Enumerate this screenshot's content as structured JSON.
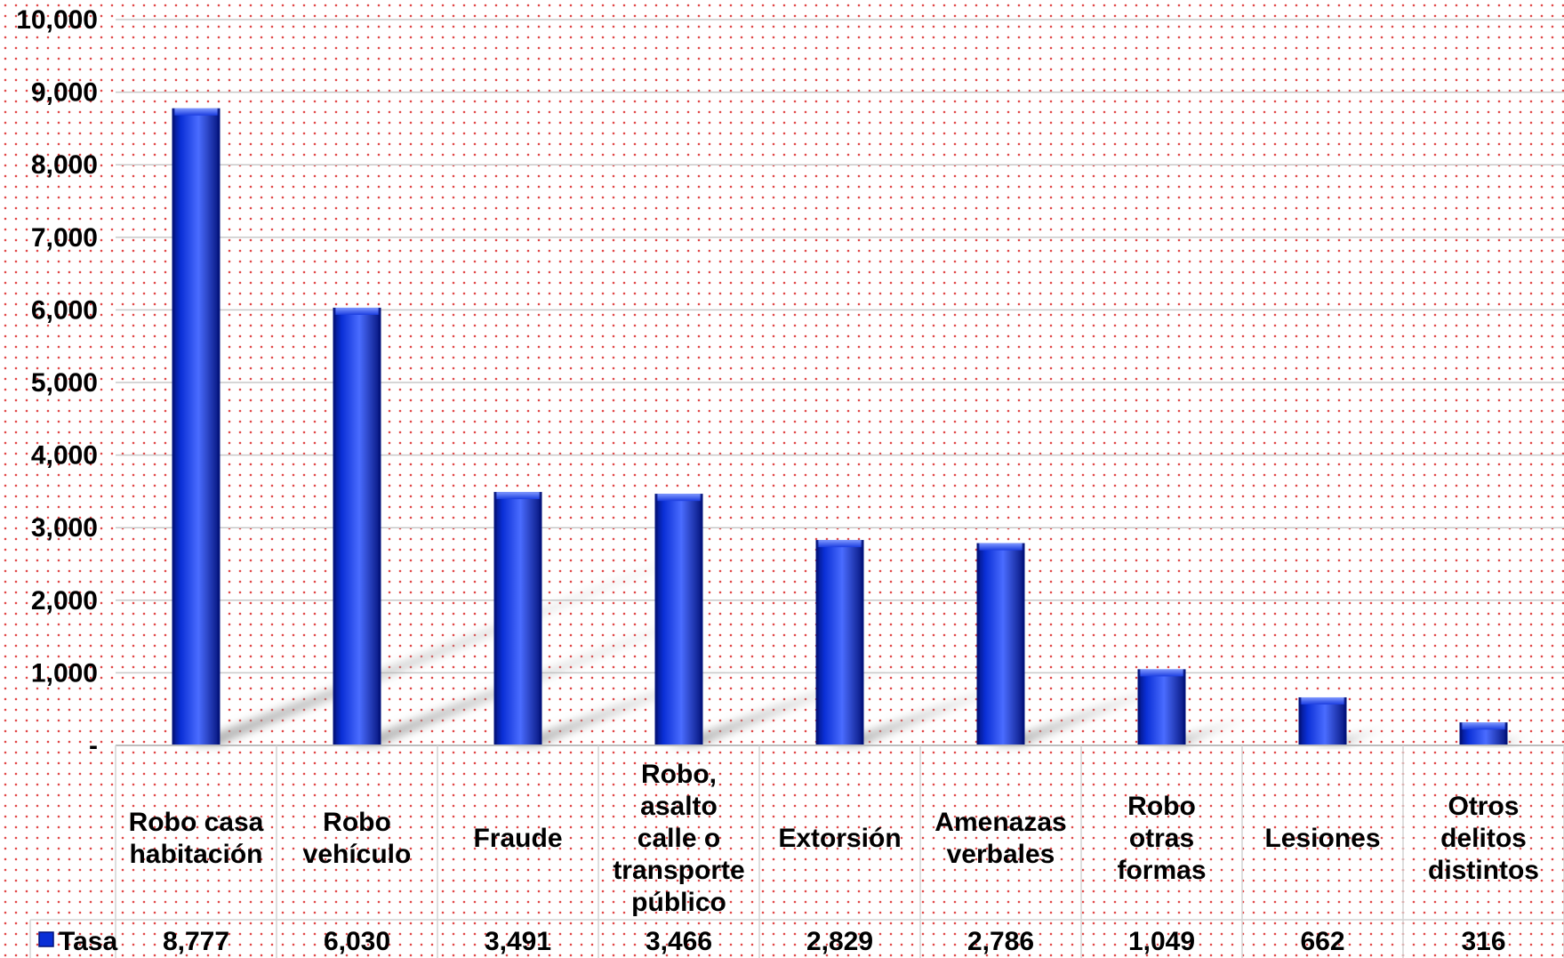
{
  "chart_data": {
    "type": "bar",
    "categories": [
      "Robo casa habitación",
      "Robo vehículo",
      "Fraude",
      "Robo, asalto calle o transporte público",
      "Extorsión",
      "Amenazas verbales",
      "Robo otras formas",
      "Lesiones",
      "Otros delitos distintos"
    ],
    "category_label_lines": [
      [
        "Robo casa",
        "habitación"
      ],
      [
        "Robo",
        "vehículo"
      ],
      [
        "Fraude"
      ],
      [
        "Robo,",
        "asalto",
        "calle o",
        "transporte",
        "público"
      ],
      [
        "Extorsión"
      ],
      [
        "Amenazas",
        "verbales"
      ],
      [
        "Robo",
        "otras",
        "formas"
      ],
      [
        "Lesiones"
      ],
      [
        "Otros",
        "delitos",
        "distintos"
      ]
    ],
    "series": [
      {
        "name": "Tasa",
        "values": [
          8777,
          6030,
          3491,
          3466,
          2829,
          2786,
          1049,
          662,
          316
        ],
        "value_labels": [
          "8,777",
          "6,030",
          "3,491",
          "3,466",
          "2,829",
          "2,786",
          "1,049",
          "662",
          "316"
        ]
      }
    ],
    "ylim": [
      0,
      10000
    ],
    "y_ticks": [
      {
        "value": 0,
        "label": "-"
      },
      {
        "value": 1000,
        "label": "1,000"
      },
      {
        "value": 2000,
        "label": "2,000"
      },
      {
        "value": 3000,
        "label": "3,000"
      },
      {
        "value": 4000,
        "label": "4,000"
      },
      {
        "value": 5000,
        "label": "5,000"
      },
      {
        "value": 6000,
        "label": "6,000"
      },
      {
        "value": 7000,
        "label": "7,000"
      },
      {
        "value": 8000,
        "label": "8,000"
      },
      {
        "value": 9000,
        "label": "9,000"
      },
      {
        "value": 10000,
        "label": "10,000"
      }
    ],
    "title": "",
    "xlabel": "",
    "ylabel": "",
    "grid": true,
    "legend_placement": "data-table-left",
    "bar_color": "#0a2fd6",
    "bar_color_dark": "#03127a",
    "bar_color_light": "#4a6cff",
    "grid_color": "#c9c9c9"
  }
}
